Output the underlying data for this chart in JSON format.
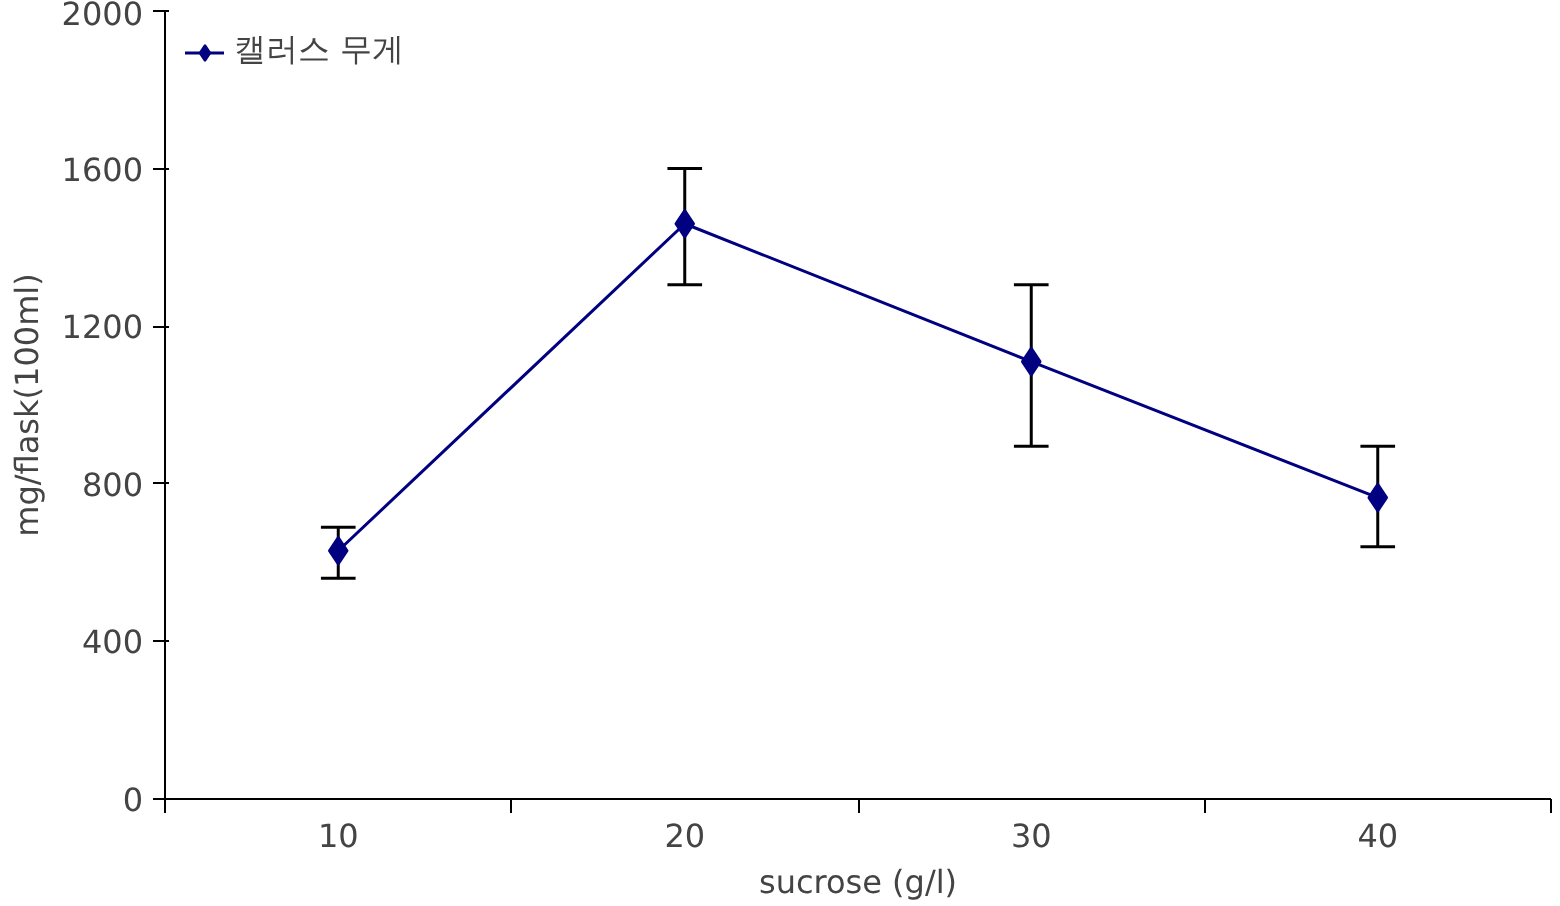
{
  "chart_data": {
    "type": "line",
    "xlabel": "sucrose (g/l)",
    "ylabel": "mg/flask(100ml)",
    "categories": [
      "10",
      "20",
      "30",
      "40"
    ],
    "series": [
      {
        "name": "캘러스 무게",
        "color": "#000080",
        "values": [
          630,
          1460,
          1110,
          765
        ],
        "errors": [
          [
            560,
            690
          ],
          [
            1305,
            1600
          ],
          [
            895,
            1305
          ],
          [
            640,
            895
          ]
        ]
      }
    ],
    "ylim": [
      0,
      2000
    ],
    "yticks": [
      0,
      400,
      800,
      1200,
      1600,
      2000
    ],
    "grid": false,
    "legend": "top left",
    "marker": "diamond",
    "line_style": "solid"
  }
}
